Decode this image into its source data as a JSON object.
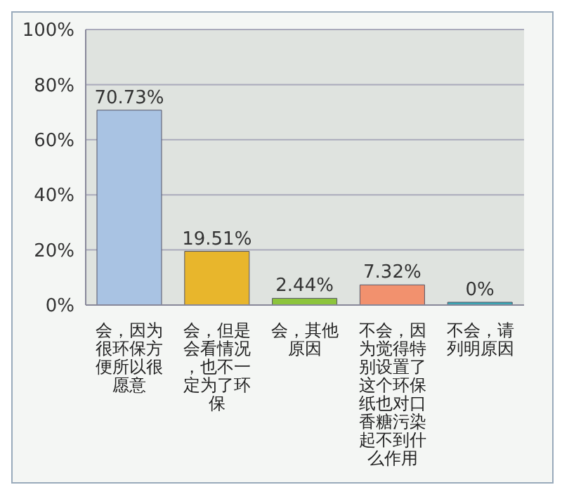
{
  "chart_data": {
    "type": "bar",
    "categories": [
      "会，因为很环保方便所以很愿意",
      "会，但是会看情况，也不一定为了环保",
      "会，其他原因",
      "不会，因为觉得特别设置了这个环保纸也对口香糖污染起不到什么作用",
      "不会，请列明原因"
    ],
    "values": [
      70.73,
      19.51,
      2.44,
      7.32,
      0
    ],
    "colors": [
      "#a9c3e3",
      "#e8b62c",
      "#8cc43c",
      "#f2916e",
      "#3aa6b4"
    ],
    "value_labels": [
      "70.73%",
      "19.51%",
      "2.44%",
      "7.32%",
      "0%"
    ],
    "ylim": [
      0,
      100
    ],
    "yticks": [
      {
        "value": 0,
        "label": "0%"
      },
      {
        "value": 20,
        "label": "20%"
      },
      {
        "value": 40,
        "label": "40%"
      },
      {
        "value": 60,
        "label": "60%"
      },
      {
        "value": 80,
        "label": "80%"
      },
      {
        "value": 100,
        "label": "100%"
      }
    ],
    "grid": "y",
    "legend": false
  }
}
